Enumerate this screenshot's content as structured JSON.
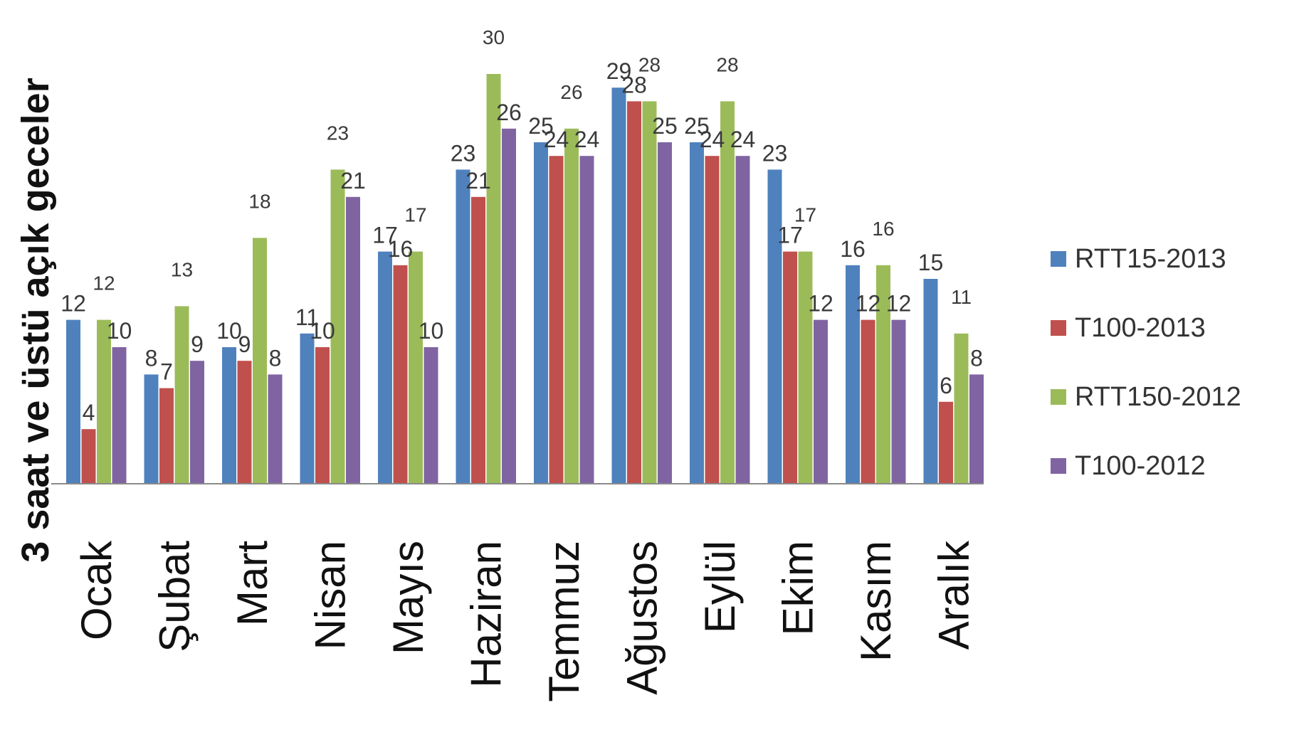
{
  "chart_data": {
    "type": "bar",
    "ylabel": "3 saat ve üstü açık geceler",
    "categories": [
      "Ocak",
      "Şubat",
      "Mart",
      "Nisan",
      "Mayıs",
      "Haziran",
      "Temmuz",
      "Ağustos",
      "Eylül",
      "Ekim",
      "Kasım",
      "Aralık"
    ],
    "series": [
      {
        "name": "RTT15-2013",
        "color": "#4f81bd",
        "values": [
          12,
          8,
          10,
          11,
          17,
          23,
          25,
          29,
          25,
          23,
          16,
          15
        ]
      },
      {
        "name": "T100-2013",
        "color": "#c0504d",
        "values": [
          4,
          7,
          9,
          10,
          16,
          21,
          24,
          28,
          24,
          17,
          12,
          6
        ]
      },
      {
        "name": "RTT150-2012",
        "color": "#9bbb59",
        "values": [
          12,
          13,
          18,
          23,
          17,
          30,
          26,
          28,
          28,
          17,
          16,
          11
        ]
      },
      {
        "name": "T100-2012",
        "color": "#8064a2",
        "values": [
          10,
          9,
          8,
          21,
          10,
          26,
          24,
          25,
          24,
          12,
          12,
          8
        ]
      }
    ],
    "ylim": [
      0,
      34
    ],
    "grid": false,
    "legend": "right",
    "data_labels": true
  }
}
